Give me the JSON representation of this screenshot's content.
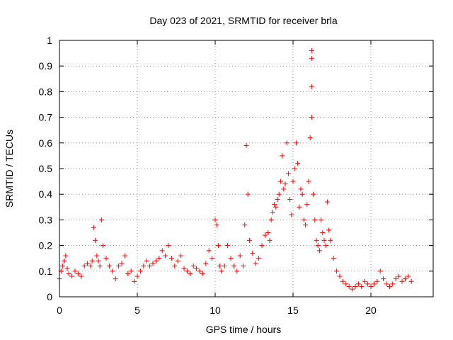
{
  "chart_data": {
    "type": "scatter",
    "title": "Day 023 of 2021, SRMTID for receiver brla",
    "xlabel": "GPS time / hours",
    "ylabel": "SRMTID / TECUs",
    "xlim": [
      0,
      24
    ],
    "ylim": [
      0,
      1
    ],
    "xticks": [
      0,
      5,
      10,
      15,
      20
    ],
    "yticks": [
      0,
      0.1,
      0.2,
      0.3,
      0.4,
      0.5,
      0.6,
      0.7,
      0.8,
      0.9,
      1
    ],
    "xtick_labels": [
      "0",
      "5",
      "10",
      "15",
      "20"
    ],
    "ytick_labels": [
      "0",
      "0.1",
      "0.2",
      "0.3",
      "0.4",
      "0.5",
      "0.6",
      "0.7",
      "0.8",
      "0.9",
      "1"
    ],
    "grid": true,
    "marker": "plus",
    "color": "#ff0000",
    "series": [
      {
        "name": "SRMTID",
        "x": [
          0.0,
          0.1,
          0.2,
          0.3,
          0.4,
          0.5,
          0.6,
          0.8,
          1.0,
          1.2,
          1.4,
          1.6,
          1.8,
          2.0,
          2.1,
          2.2,
          2.3,
          2.4,
          2.5,
          2.6,
          2.7,
          2.8,
          3.0,
          3.2,
          3.4,
          3.6,
          3.8,
          4.0,
          4.2,
          4.4,
          4.6,
          4.8,
          5.0,
          5.2,
          5.4,
          5.6,
          5.8,
          6.0,
          6.2,
          6.4,
          6.6,
          6.8,
          7.0,
          7.2,
          7.4,
          7.6,
          7.8,
          8.0,
          8.2,
          8.4,
          8.6,
          8.8,
          9.0,
          9.2,
          9.4,
          9.6,
          9.8,
          10.0,
          10.1,
          10.2,
          10.3,
          10.4,
          10.6,
          10.8,
          11.0,
          11.2,
          11.4,
          11.6,
          11.8,
          11.9,
          12.0,
          12.1,
          12.2,
          12.4,
          12.6,
          12.8,
          13.0,
          13.2,
          13.4,
          13.5,
          13.6,
          13.7,
          13.8,
          13.9,
          14.0,
          14.1,
          14.2,
          14.3,
          14.4,
          14.5,
          14.6,
          14.7,
          14.8,
          14.9,
          15.0,
          15.1,
          15.2,
          15.3,
          15.4,
          15.5,
          15.6,
          15.7,
          15.8,
          15.9,
          16.0,
          16.1,
          16.2,
          16.2,
          16.2,
          16.2,
          16.3,
          16.4,
          16.5,
          16.6,
          16.7,
          16.8,
          16.9,
          17.0,
          17.1,
          17.2,
          17.3,
          17.4,
          17.6,
          17.8,
          18.0,
          18.2,
          18.4,
          18.6,
          18.8,
          19.0,
          19.2,
          19.4,
          19.6,
          19.8,
          20.0,
          20.2,
          20.4,
          20.6,
          20.8,
          21.0,
          21.2,
          21.4,
          21.6,
          21.8,
          22.0,
          22.2,
          22.4,
          22.6
        ],
        "y": [
          0.07,
          0.1,
          0.12,
          0.14,
          0.16,
          0.11,
          0.09,
          0.08,
          0.1,
          0.09,
          0.08,
          0.12,
          0.13,
          0.12,
          0.14,
          0.27,
          0.22,
          0.16,
          0.14,
          0.12,
          0.3,
          0.2,
          0.15,
          0.12,
          0.1,
          0.07,
          0.12,
          0.13,
          0.16,
          0.09,
          0.1,
          0.06,
          0.08,
          0.1,
          0.12,
          0.14,
          0.12,
          0.13,
          0.14,
          0.15,
          0.18,
          0.16,
          0.2,
          0.15,
          0.12,
          0.14,
          0.16,
          0.11,
          0.1,
          0.09,
          0.12,
          0.11,
          0.1,
          0.09,
          0.13,
          0.18,
          0.15,
          0.3,
          0.28,
          0.2,
          0.12,
          0.1,
          0.12,
          0.2,
          0.15,
          0.12,
          0.1,
          0.16,
          0.12,
          0.28,
          0.59,
          0.4,
          0.22,
          0.17,
          0.13,
          0.15,
          0.2,
          0.24,
          0.25,
          0.22,
          0.3,
          0.33,
          0.36,
          0.35,
          0.38,
          0.4,
          0.45,
          0.55,
          0.42,
          0.44,
          0.6,
          0.48,
          0.38,
          0.32,
          0.45,
          0.5,
          0.6,
          0.52,
          0.35,
          0.42,
          0.4,
          0.3,
          0.28,
          0.36,
          0.45,
          0.62,
          0.96,
          0.93,
          0.82,
          0.7,
          0.4,
          0.3,
          0.22,
          0.2,
          0.18,
          0.3,
          0.25,
          0.22,
          0.2,
          0.37,
          0.26,
          0.22,
          0.15,
          0.1,
          0.08,
          0.06,
          0.05,
          0.04,
          0.03,
          0.04,
          0.05,
          0.04,
          0.06,
          0.05,
          0.04,
          0.05,
          0.06,
          0.1,
          0.07,
          0.05,
          0.04,
          0.05,
          0.07,
          0.08,
          0.06,
          0.07,
          0.08,
          0.06
        ]
      }
    ],
    "legend": "none"
  }
}
